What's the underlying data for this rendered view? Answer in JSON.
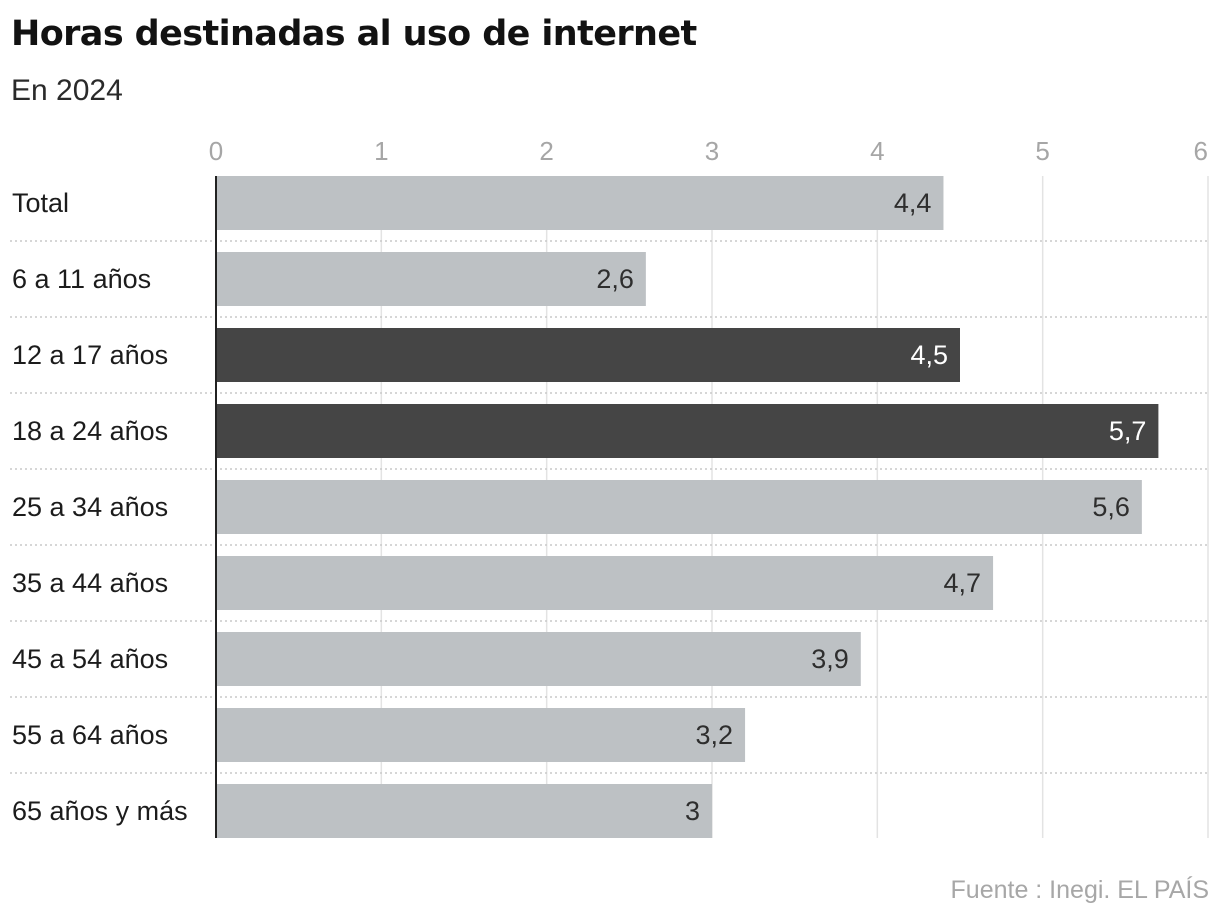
{
  "header": {
    "title": "Horas destinadas al uso de internet",
    "subtitle": "En 2024"
  },
  "footer": {
    "source": "Fuente : Inegi. EL PAÍS"
  },
  "colors": {
    "bar_default": "#bdc1c4",
    "bar_highlight": "#454545",
    "grid": "#e3e3e3",
    "row_separator": "#c9c9c9",
    "axis": "#222222",
    "tick_label": "#a6a6a6",
    "category_label": "#1c1c1c",
    "value_label_dark": "#2e2e2e",
    "value_label_light": "#ffffff"
  },
  "chart_data": {
    "type": "bar",
    "orientation": "horizontal",
    "title": "Horas destinadas al uso de internet",
    "subtitle": "En 2024",
    "xlabel": "",
    "ylabel": "",
    "xlim": [
      0,
      6
    ],
    "x_ticks": [
      "0",
      "1",
      "2",
      "3",
      "4",
      "5",
      "6"
    ],
    "x_axis_position": "top",
    "grid": true,
    "legend": "none",
    "categories": [
      "Total",
      "6 a 11 años",
      "12 a 17 años",
      "18 a 24 años",
      "25 a 34 años",
      "35 a 44 años",
      "45 a 54 años",
      "55 a 64 años",
      "65 años y más"
    ],
    "values": [
      4.4,
      2.6,
      4.5,
      5.7,
      5.6,
      4.7,
      3.9,
      3.2,
      3
    ],
    "value_labels": [
      "4,4",
      "2,6",
      "4,5",
      "5,7",
      "5,6",
      "4,7",
      "3,9",
      "3,2",
      "3"
    ],
    "highlighted_categories": [
      "12 a 17 años",
      "18 a 24 años"
    ]
  }
}
